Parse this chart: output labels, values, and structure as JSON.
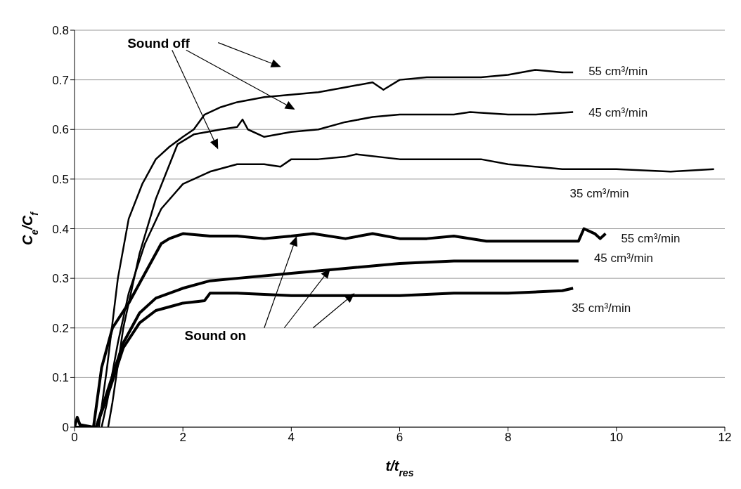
{
  "chart_data": {
    "type": "line",
    "xlabel": "t/t$_{res}$",
    "ylabel": "C$_{e}$/C$_{f}$",
    "xlim": [
      0,
      12
    ],
    "xticks": [
      0,
      2,
      4,
      6,
      8,
      10,
      12
    ],
    "ylim": [
      0,
      0.8
    ],
    "yticks": [
      0,
      0.1,
      0.2,
      0.3,
      0.4,
      0.5,
      0.6,
      0.7,
      0.8
    ],
    "grid": "y",
    "legend": false,
    "marker": "none",
    "line_style": "solid",
    "annotations": [
      "Sound off",
      "Sound on"
    ],
    "series": [
      {
        "name": "55 cm³/min",
        "color": "#000000",
        "x": [
          0.45,
          0.6,
          0.8,
          1,
          1.25,
          1.5,
          1.75,
          2,
          2.2,
          2.4,
          2.7,
          3,
          3.5,
          4,
          4.5,
          5,
          5.5,
          5.7,
          6,
          6.5,
          7,
          7.5,
          8,
          8.5,
          9,
          9.2
        ],
        "values": [
          0,
          0.12,
          0.3,
          0.42,
          0.49,
          0.54,
          0.565,
          0.585,
          0.6,
          0.63,
          0.645,
          0.655,
          0.665,
          0.67,
          0.675,
          0.685,
          0.695,
          0.68,
          0.7,
          0.705,
          0.705,
          0.705,
          0.71,
          0.72,
          0.715,
          0.715
        ]
      },
      {
        "name": "45 cm³/min",
        "color": "#000000",
        "x": [
          0.62,
          0.7,
          0.9,
          1.2,
          1.5,
          1.9,
          2.2,
          2.7,
          3,
          3.1,
          3.2,
          3.5,
          4,
          4.5,
          5,
          5.5,
          6,
          6.5,
          7,
          7.3,
          8,
          8.5,
          9.2
        ],
        "values": [
          0,
          0.05,
          0.2,
          0.35,
          0.46,
          0.57,
          0.59,
          0.6,
          0.605,
          0.62,
          0.6,
          0.585,
          0.595,
          0.6,
          0.615,
          0.625,
          0.63,
          0.63,
          0.63,
          0.635,
          0.63,
          0.63,
          0.635
        ]
      },
      {
        "name": "35 cm³/min",
        "color": "#000000",
        "x": [
          0.5,
          0.6,
          0.8,
          1,
          1.3,
          1.6,
          2,
          2.5,
          3,
          3.5,
          3.8,
          4,
          4.5,
          5,
          5.2,
          6,
          7,
          7.5,
          8,
          9,
          10,
          11,
          11.8
        ],
        "values": [
          0,
          0.05,
          0.17,
          0.27,
          0.37,
          0.44,
          0.49,
          0.515,
          0.53,
          0.53,
          0.525,
          0.54,
          0.54,
          0.545,
          0.55,
          0.54,
          0.54,
          0.54,
          0.53,
          0.52,
          0.52,
          0.515,
          0.52
        ]
      },
      {
        "name": "55 cm³/min",
        "color": "#000000",
        "x": [
          0,
          0.05,
          0.1,
          0.35,
          0.5,
          0.7,
          1,
          1.3,
          1.6,
          1.75,
          2,
          2.5,
          3,
          3.5,
          4,
          4.4,
          5,
          5.5,
          6,
          6.5,
          7,
          7.6,
          8,
          9,
          9.3,
          9.4,
          9.6,
          9.7,
          9.8
        ],
        "values": [
          0,
          0.02,
          0.005,
          0,
          0.12,
          0.2,
          0.25,
          0.31,
          0.37,
          0.38,
          0.39,
          0.385,
          0.385,
          0.38,
          0.385,
          0.39,
          0.38,
          0.39,
          0.38,
          0.38,
          0.385,
          0.375,
          0.375,
          0.375,
          0.375,
          0.4,
          0.39,
          0.38,
          0.39
        ]
      },
      {
        "name": "45 cm³/min",
        "color": "#000000",
        "x": [
          0,
          0.4,
          0.6,
          0.9,
          1.2,
          1.5,
          2,
          2.5,
          3,
          4,
          5,
          6,
          7,
          8,
          9.3
        ],
        "values": [
          0,
          0,
          0.07,
          0.17,
          0.23,
          0.26,
          0.28,
          0.295,
          0.3,
          0.31,
          0.32,
          0.33,
          0.335,
          0.335,
          0.335
        ]
      },
      {
        "name": "35 cm³/min",
        "color": "#000000",
        "x": [
          0,
          0.4,
          0.6,
          0.9,
          1.2,
          1.5,
          2,
          2.4,
          2.5,
          3,
          4,
          5,
          6,
          7,
          8,
          9,
          9.2
        ],
        "values": [
          0,
          0,
          0.06,
          0.16,
          0.21,
          0.235,
          0.25,
          0.255,
          0.27,
          0.27,
          0.265,
          0.265,
          0.265,
          0.27,
          0.27,
          0.275,
          0.28
        ]
      }
    ]
  }
}
